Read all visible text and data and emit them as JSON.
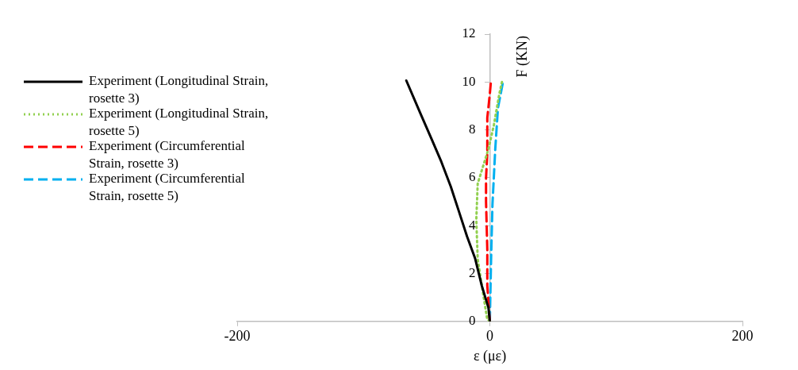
{
  "chart_data": {
    "type": "line",
    "xlabel": "ε (με)",
    "ylabel": "F (KN)",
    "xlim": [
      -200,
      200
    ],
    "xticks": [
      -200,
      0,
      200
    ],
    "ylim": [
      0,
      12
    ],
    "yticks": [
      0,
      2,
      4,
      6,
      8,
      10,
      12
    ],
    "grid": false,
    "legend": "left",
    "marker": "none",
    "series": [
      {
        "name": "Experiment (Longitudinal Strain, rosette 3)",
        "color": "#000000",
        "line_style": "solid",
        "x": [
          0,
          -1.1,
          -6.4,
          -11.7,
          -18.1,
          -24.5,
          -30.9,
          -38.4,
          -45.9,
          -54.4,
          -66.1
        ],
        "values": [
          0,
          0.57,
          1.5,
          2.64,
          3.56,
          4.6,
          5.63,
          6.67,
          7.59,
          8.62,
          10.06
        ]
      },
      {
        "name": "Experiment (Longitudinal Strain, rosette 5)",
        "color": "#92d050",
        "line_style": "dotted",
        "x": [
          0,
          -2.1,
          -5.3,
          -9.6,
          -10.7,
          -9.6,
          -6.4,
          -1.1,
          3.2,
          7.5,
          9.6
        ],
        "values": [
          0,
          0.1,
          1.15,
          2.6,
          4.25,
          5.75,
          6.3,
          7.2,
          8.2,
          9.5,
          10
        ]
      },
      {
        "name": "Experiment (Circumferential Strain, rosette 3)",
        "color": "#ff0000",
        "line_style": "dashed",
        "x": [
          0,
          -2,
          -2,
          -3,
          -3,
          -2,
          -2,
          0,
          1
        ],
        "values": [
          0,
          1.5,
          3,
          5,
          6,
          7,
          8.5,
          9.5,
          10.1
        ]
      },
      {
        "name": "Experiment (Circumferential Strain, rosette 5)",
        "color": "#00b0f0",
        "line_style": "dashed",
        "x": [
          0,
          1,
          2.1,
          4.3,
          6.4,
          10.6
        ],
        "values": [
          0,
          2.6,
          4.9,
          7.2,
          8.9,
          10.06
        ]
      }
    ]
  }
}
